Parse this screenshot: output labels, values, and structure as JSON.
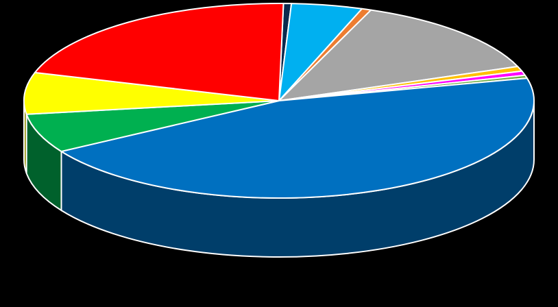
{
  "chart_data": {
    "type": "pie",
    "style": "3d-exploded-none",
    "title": "",
    "legend": "none",
    "slices": [
      {
        "value": 0.5,
        "color": "#0B2A4E"
      },
      {
        "value": 4.5,
        "color": "#00B0F0"
      },
      {
        "value": 0.6,
        "color": "#ED7D31"
      },
      {
        "value": 13.4,
        "color": "#A5A5A5"
      },
      {
        "value": 0.8,
        "color": "#FFC000"
      },
      {
        "value": 0.7,
        "color": "#FF00FF"
      },
      {
        "value": 0.5,
        "color": "#70AD47"
      },
      {
        "value": 45.0,
        "color": "#0070C0"
      },
      {
        "value": 6.5,
        "color": "#00B050"
      },
      {
        "value": 6.9,
        "color": "#FFFF00"
      },
      {
        "value": 20.6,
        "color": "#FF0000"
      }
    ]
  }
}
